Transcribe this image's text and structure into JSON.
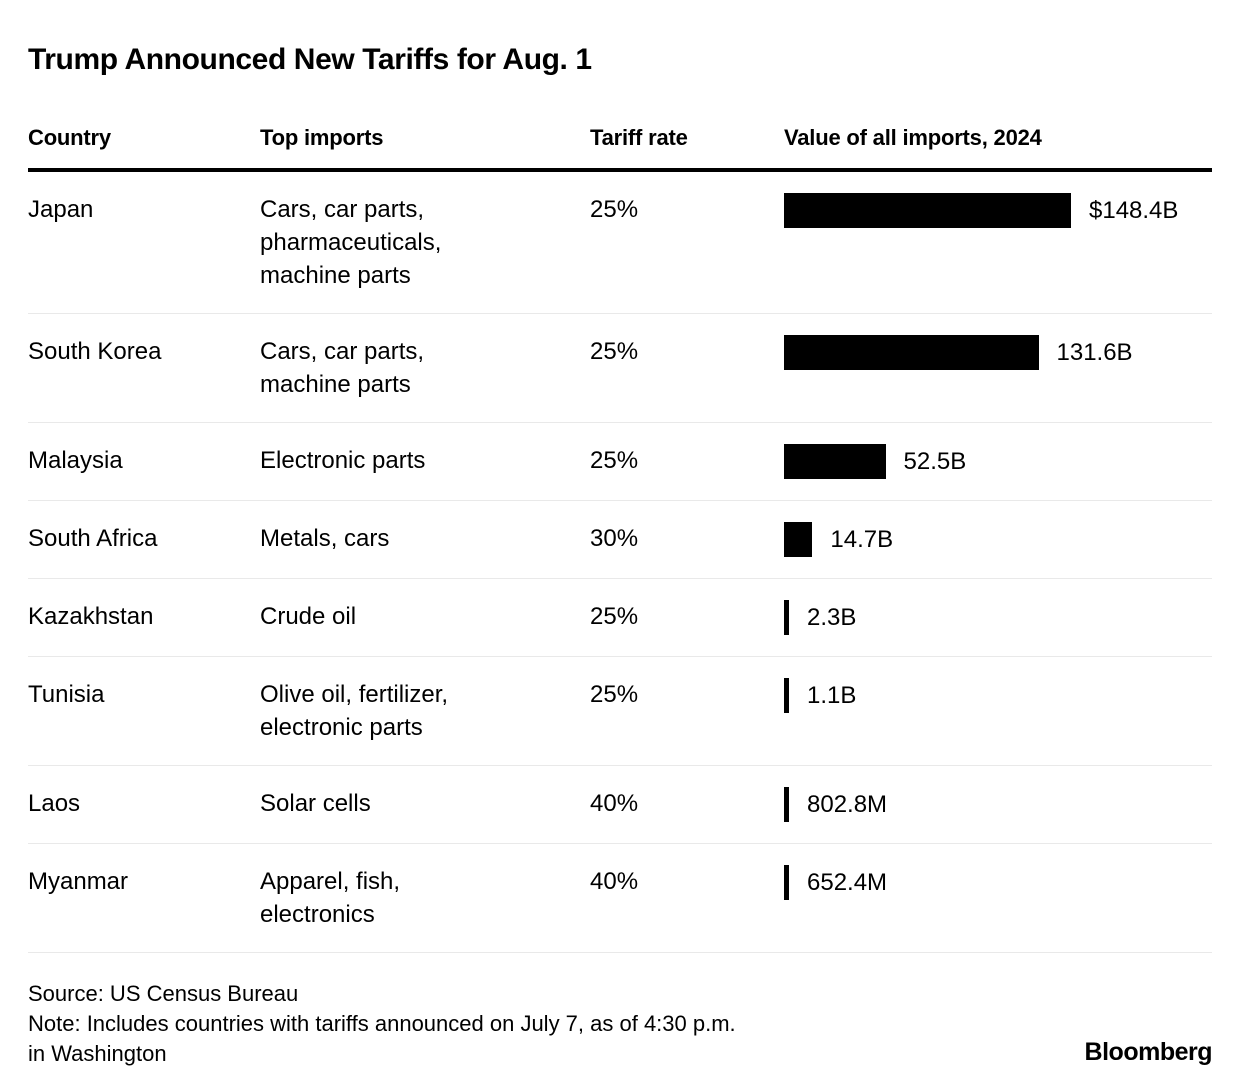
{
  "title": "Trump Announced New Tariffs for Aug. 1",
  "table": {
    "columns": [
      "Country",
      "Top imports",
      "Tariff rate",
      "Value of all imports, 2024"
    ]
  },
  "chart_data": {
    "type": "bar",
    "orientation": "horizontal",
    "title": "Trump Announced New Tariffs for Aug. 1",
    "value_axis_label": "Value of all imports, 2024",
    "value_unit": "USD billions",
    "bar_color": "#000000",
    "xlim": [
      0,
      148.4
    ],
    "categories": [
      "Japan",
      "South Korea",
      "Malaysia",
      "South Africa",
      "Kazakhstan",
      "Tunisia",
      "Laos",
      "Myanmar"
    ],
    "values": [
      148.4,
      131.6,
      52.5,
      14.7,
      2.3,
      1.1,
      0.8028,
      0.6524
    ],
    "value_labels": [
      "$148.4B",
      "131.6B",
      "52.5B",
      "14.7B",
      "2.3B",
      "1.1B",
      "802.8M",
      "652.4M"
    ],
    "tariff_rates": [
      "25%",
      "25%",
      "25%",
      "30%",
      "25%",
      "25%",
      "40%",
      "40%"
    ],
    "rows": [
      {
        "country": "Japan",
        "imports": "Cars, car parts,\npharmaceuticals,\nmachine parts",
        "tariff_rate": "25%",
        "value_b": 148.4,
        "value_label": "$148.4B"
      },
      {
        "country": "South Korea",
        "imports": "Cars, car parts,\nmachine parts",
        "tariff_rate": "25%",
        "value_b": 131.6,
        "value_label": "131.6B"
      },
      {
        "country": "Malaysia",
        "imports": "Electronic parts",
        "tariff_rate": "25%",
        "value_b": 52.5,
        "value_label": "52.5B"
      },
      {
        "country": "South Africa",
        "imports": "Metals, cars",
        "tariff_rate": "30%",
        "value_b": 14.7,
        "value_label": "14.7B"
      },
      {
        "country": "Kazakhstan",
        "imports": "Crude oil",
        "tariff_rate": "25%",
        "value_b": 2.3,
        "value_label": "2.3B"
      },
      {
        "country": "Tunisia",
        "imports": "Olive oil, fertilizer,\nelectronic parts",
        "tariff_rate": "25%",
        "value_b": 1.1,
        "value_label": "1.1B"
      },
      {
        "country": "Laos",
        "imports": "Solar cells",
        "tariff_rate": "40%",
        "value_b": 0.8028,
        "value_label": "802.8M"
      },
      {
        "country": "Myanmar",
        "imports": "Apparel, fish,\nelectronics",
        "tariff_rate": "40%",
        "value_b": 0.6524,
        "value_label": "652.4M"
      }
    ]
  },
  "footer": {
    "source": "Source: US Census Bureau",
    "note": "Note: Includes countries with tariffs announced on July 7, as of 4:30 p.m.\nin Washington",
    "brand": "Bloomberg"
  }
}
